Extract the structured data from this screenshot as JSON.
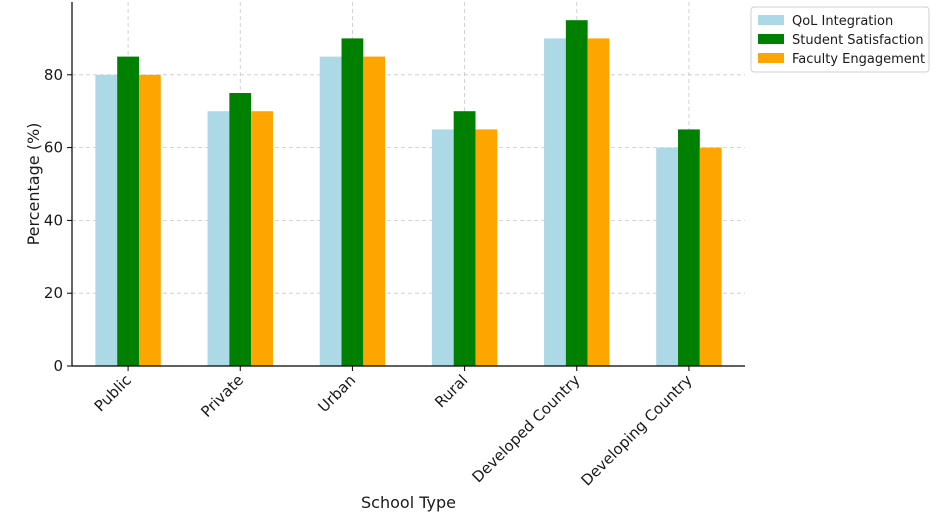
{
  "chart_data": {
    "type": "bar",
    "title": "",
    "xlabel": "School Type",
    "ylabel": "Percentage (%)",
    "categories": [
      "Public",
      "Private",
      "Urban",
      "Rural",
      "Developed Country",
      "Developing Country"
    ],
    "series": [
      {
        "name": "QoL Integration",
        "color": "#add8e6",
        "values": [
          80,
          70,
          85,
          65,
          90,
          60
        ]
      },
      {
        "name": "Student Satisfaction",
        "color": "#008000",
        "values": [
          85,
          75,
          90,
          70,
          95,
          65
        ]
      },
      {
        "name": "Faculty Engagement",
        "color": "#ffa500",
        "values": [
          80,
          70,
          85,
          65,
          90,
          60
        ]
      }
    ],
    "ylim": [
      0,
      100
    ],
    "yticks": [
      0,
      20,
      40,
      60,
      80
    ],
    "grid": true,
    "legend_position": "top-right, outside plot"
  }
}
